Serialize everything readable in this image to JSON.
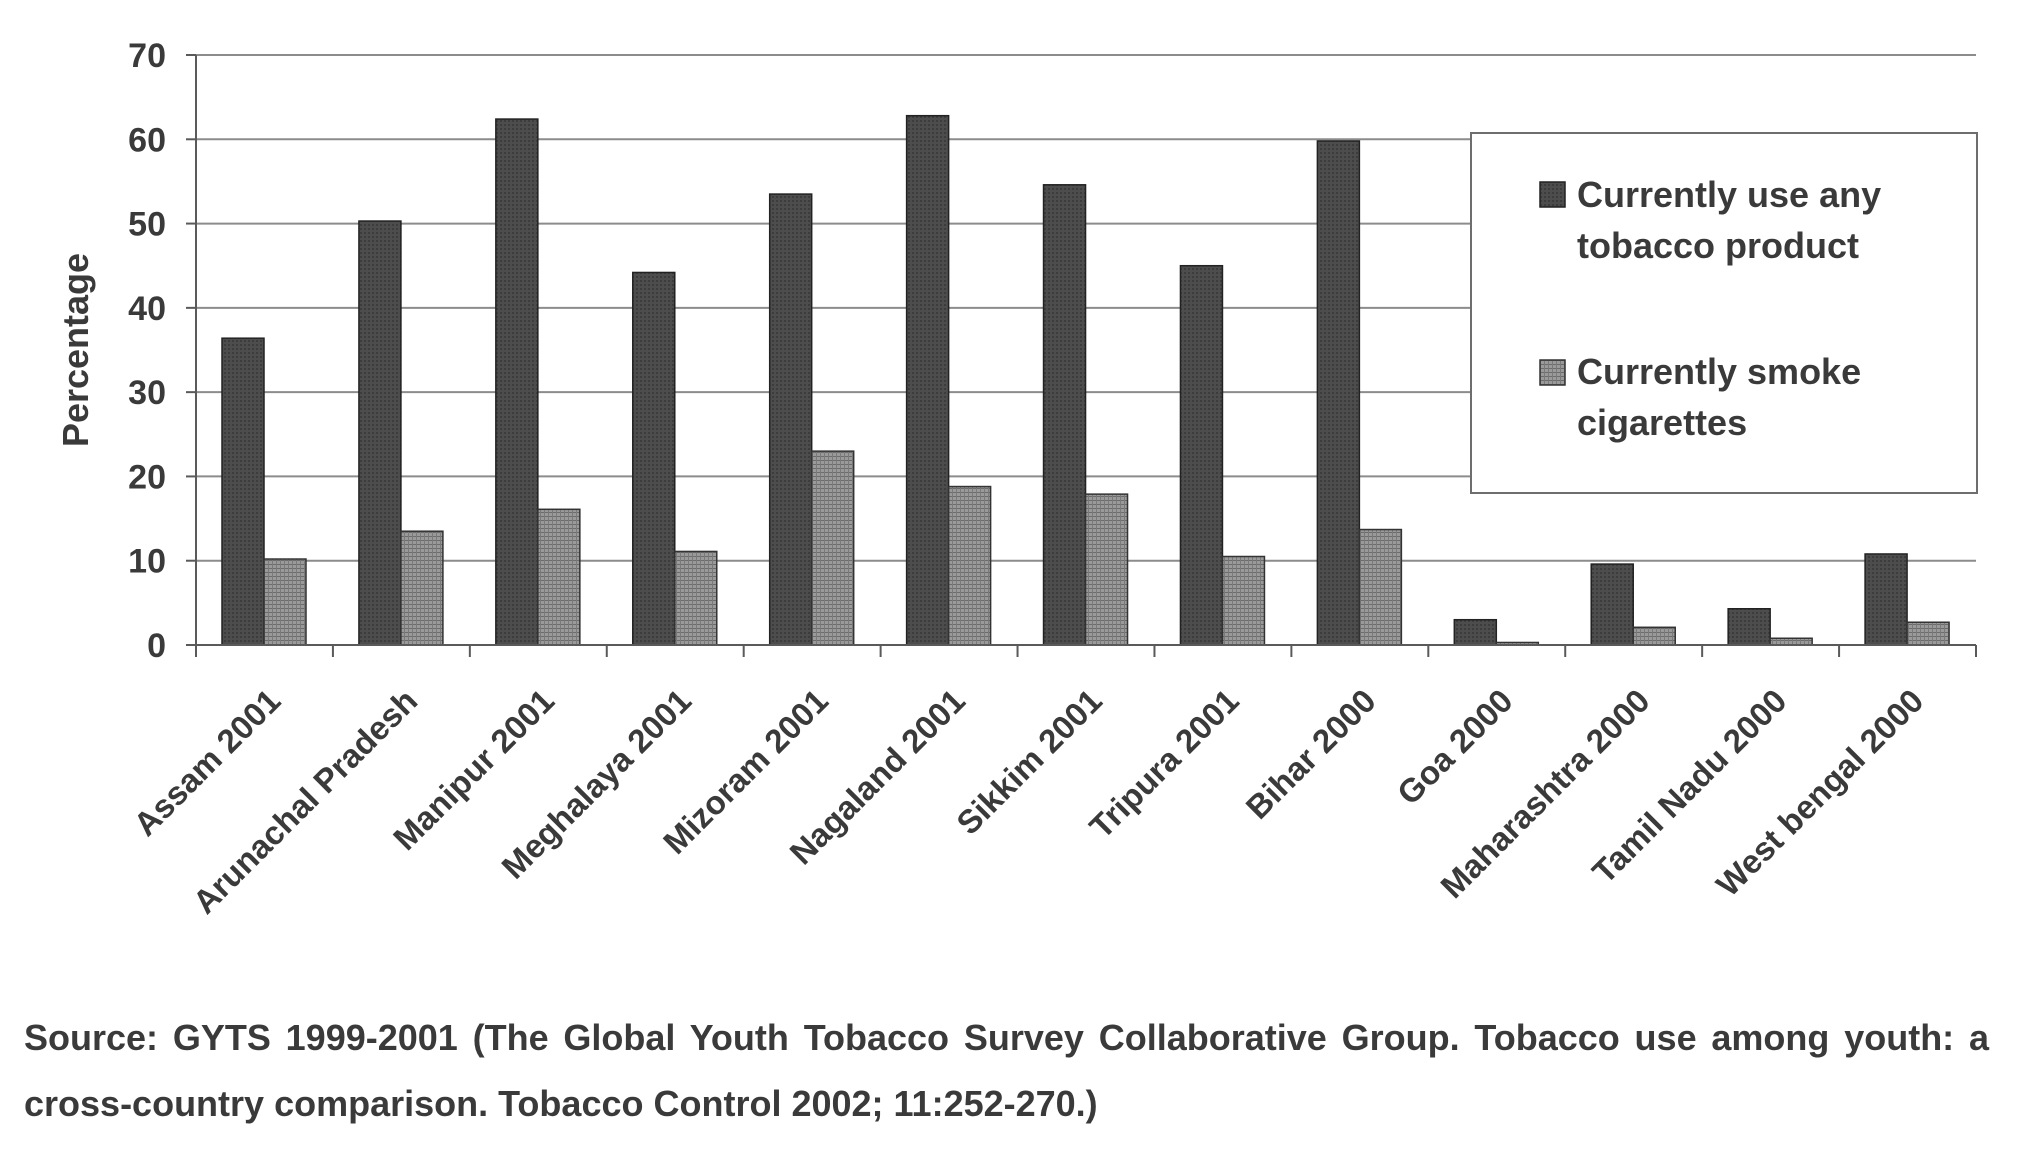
{
  "colors": {
    "text": "#3a3a3a",
    "axis": "#5a5a5a",
    "gridline": "#8c8c8c",
    "series_1_fill": "#4a4a4a",
    "series_2_fill": "#8a8a8a",
    "legend_border": "#6e6e6e"
  },
  "chart_data": {
    "type": "bar",
    "title": "",
    "xlabel": "",
    "ylabel": "Percentage",
    "ylim": [
      0,
      70
    ],
    "yticks": [
      0,
      10,
      20,
      30,
      40,
      50,
      60,
      70
    ],
    "grid": "horizontal",
    "legend_position": "top-right",
    "categories": [
      "Assam 2001",
      "Arunachal Pradesh",
      "Manipur 2001",
      "Meghalaya 2001",
      "Mizoram 2001",
      "Nagaland 2001",
      "Sikkim 2001",
      "Tripura 2001",
      "Bihar 2000",
      "Goa 2000",
      "Maharashtra 2000",
      "Tamil Nadu 2000",
      "West bengal 2000"
    ],
    "series": [
      {
        "name": "Currently use any tobacco product",
        "legend_lines": [
          "Currently use any",
          "tobacco product"
        ],
        "values": [
          36.4,
          50.3,
          62.4,
          44.2,
          53.5,
          62.8,
          54.6,
          45.0,
          59.8,
          3.0,
          9.6,
          4.3,
          10.8
        ]
      },
      {
        "name": "Currently smoke cigarettes",
        "legend_lines": [
          "Currently smoke",
          "cigarettes"
        ],
        "values": [
          10.2,
          13.5,
          16.1,
          11.1,
          23.0,
          18.8,
          17.9,
          10.5,
          13.7,
          0.3,
          2.1,
          0.8,
          2.7
        ]
      }
    ]
  },
  "source_note": "Source: GYTS 1999-2001 (The Global Youth Tobacco Survey Collaborative Group. Tobacco use among youth: a cross-country comparison. Tobacco Control 2002; 11:252-270.)"
}
